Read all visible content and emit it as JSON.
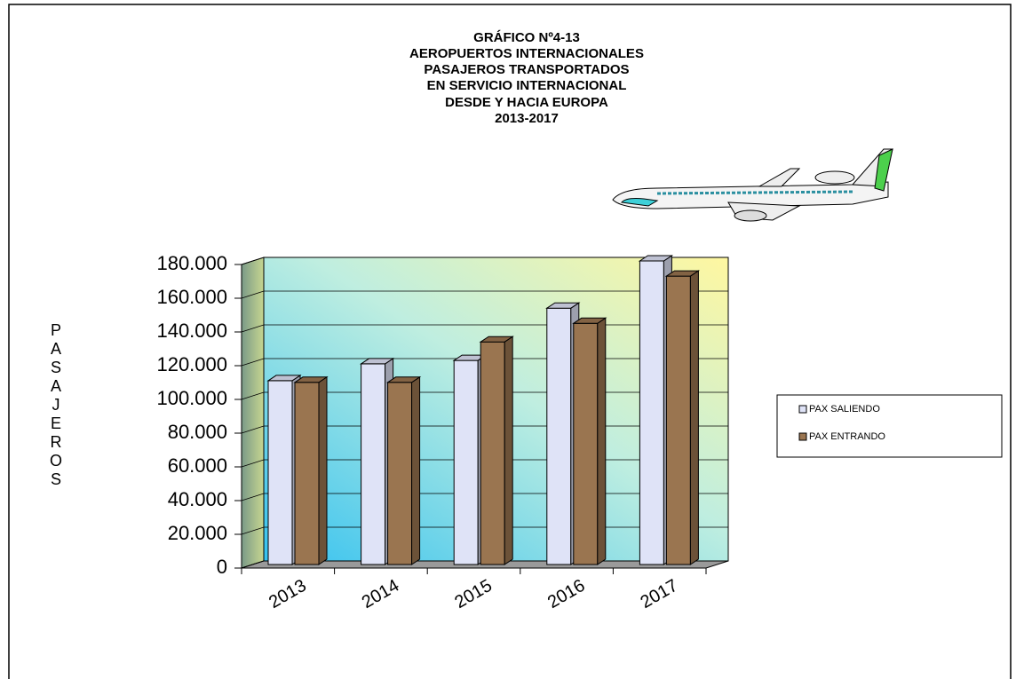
{
  "chart_data": {
    "type": "bar",
    "title": [
      "GRÁFICO Nº4-13",
      "AEROPUERTOS  INTERNACIONALES",
      "PASAJEROS TRANSPORTADOS",
      "EN SERVICIO INTERNACIONAL",
      "DESDE  Y HACIA EUROPA",
      "2013-2017"
    ],
    "y_label": "PASAJEROS",
    "categories": [
      "2013",
      "2014",
      "2015",
      "2016",
      "2017"
    ],
    "series": [
      {
        "name": "PAX SALIENDO",
        "color": "#dfe3f7",
        "values": [
          109000,
          119000,
          121000,
          152000,
          180000
        ]
      },
      {
        "name": "PAX ENTRANDO",
        "color": "#9a7550",
        "values": [
          108000,
          108000,
          132000,
          143000,
          171000
        ]
      }
    ],
    "ylim": [
      0,
      180000
    ],
    "yticks": [
      0,
      {
        "value": 20000,
        "label": "20.000"
      },
      {
        "value": 40000,
        "label": "40.000"
      },
      {
        "value": 60000,
        "label": "60.000"
      },
      {
        "value": 80000,
        "label": "80.000"
      },
      {
        "value": 100000,
        "label": "100.000"
      },
      {
        "value": 120000,
        "label": "120.000"
      },
      {
        "value": 140000,
        "label": "140.000"
      },
      {
        "value": 160000,
        "label": "160.000"
      },
      {
        "value": 180000,
        "label": "180.000"
      }
    ],
    "grid": true,
    "legend": "right"
  }
}
